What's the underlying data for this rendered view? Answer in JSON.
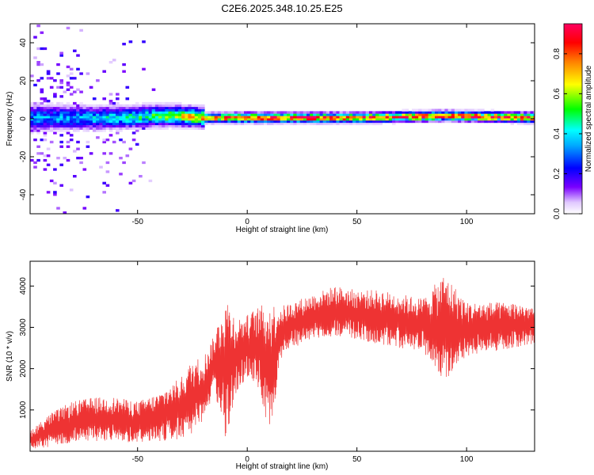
{
  "title": "C2E6.2025.348.10.25.E25",
  "chart_data": [
    {
      "type": "heatmap",
      "xlabel": "Height of straight line (km)",
      "ylabel": "Frequency (Hz)",
      "xlim": [
        -99,
        131
      ],
      "ylim": [
        -50,
        50
      ],
      "xticks": [
        -50,
        0,
        50,
        100
      ],
      "yticks": [
        -40,
        -20,
        0,
        20,
        40
      ],
      "grid": false,
      "colorbar": {
        "label": "Normalized spectral amplitude",
        "range": [
          0,
          0.95
        ],
        "ticks": [
          0.0,
          0.2,
          0.4,
          0.6,
          0.8
        ],
        "tick_labels": [
          "0.0",
          "0.2",
          "0.4",
          "0.6",
          "0.8"
        ],
        "colormap": [
          "#ffffff",
          "#7a00ff",
          "#0000ff",
          "#00ffff",
          "#00ff00",
          "#ffff00",
          "#ff8000",
          "#ff0000",
          "#ff0060"
        ]
      },
      "ridge": {
        "description_free": true,
        "center_hz": [
          {
            "x": -80,
            "y": 0
          },
          {
            "x": -60,
            "y": 0
          },
          {
            "x": -40,
            "y": 1
          },
          {
            "x": -30,
            "y": 1
          },
          {
            "x": -20,
            "y": 0
          },
          {
            "x": 0,
            "y": 0
          },
          {
            "x": 50,
            "y": 0
          },
          {
            "x": 90,
            "y": 1
          },
          {
            "x": 131,
            "y": 0
          }
        ],
        "peak_amplitude": [
          {
            "x": -80,
            "y": 0.35
          },
          {
            "x": -60,
            "y": 0.45
          },
          {
            "x": -40,
            "y": 0.55
          },
          {
            "x": -20,
            "y": 0.75
          },
          {
            "x": 0,
            "y": 0.9
          },
          {
            "x": 50,
            "y": 0.85
          },
          {
            "x": 100,
            "y": 0.9
          },
          {
            "x": 131,
            "y": 0.85
          }
        ]
      }
    },
    {
      "type": "line",
      "xlabel": "Height of straight line (km)",
      "ylabel": "SNR (10 * v/v)",
      "xlim": [
        -99,
        131
      ],
      "ylim": [
        0,
        4600
      ],
      "xticks": [
        -50,
        0,
        50,
        100
      ],
      "yticks": [
        1000,
        2000,
        3000,
        4000
      ],
      "grid": false,
      "color": "#ee3333",
      "envelope": [
        {
          "x": -99,
          "low": 50,
          "high": 500
        },
        {
          "x": -90,
          "low": 100,
          "high": 900
        },
        {
          "x": -80,
          "low": 200,
          "high": 1200
        },
        {
          "x": -70,
          "low": 250,
          "high": 1300
        },
        {
          "x": -60,
          "low": 250,
          "high": 1300
        },
        {
          "x": -50,
          "low": 200,
          "high": 1200
        },
        {
          "x": -40,
          "low": 250,
          "high": 1400
        },
        {
          "x": -30,
          "low": 300,
          "high": 1800
        },
        {
          "x": -25,
          "low": 400,
          "high": 2200
        },
        {
          "x": -20,
          "low": 600,
          "high": 2300
        },
        {
          "x": -15,
          "low": 1500,
          "high": 2800
        },
        {
          "x": -10,
          "low": 200,
          "high": 3800
        },
        {
          "x": -5,
          "low": 1400,
          "high": 3200
        },
        {
          "x": 0,
          "low": 1800,
          "high": 3300
        },
        {
          "x": 5,
          "low": 1500,
          "high": 3500
        },
        {
          "x": 10,
          "low": 300,
          "high": 3600
        },
        {
          "x": 15,
          "low": 2100,
          "high": 3500
        },
        {
          "x": 20,
          "low": 2500,
          "high": 3600
        },
        {
          "x": 30,
          "low": 2700,
          "high": 3800
        },
        {
          "x": 40,
          "low": 2800,
          "high": 4000
        },
        {
          "x": 50,
          "low": 2700,
          "high": 3900
        },
        {
          "x": 60,
          "low": 2600,
          "high": 3900
        },
        {
          "x": 70,
          "low": 2500,
          "high": 3800
        },
        {
          "x": 80,
          "low": 2400,
          "high": 3700
        },
        {
          "x": 90,
          "low": 1700,
          "high": 4300
        },
        {
          "x": 100,
          "low": 2300,
          "high": 3600
        },
        {
          "x": 110,
          "low": 2400,
          "high": 3600
        },
        {
          "x": 120,
          "low": 2500,
          "high": 3600
        },
        {
          "x": 131,
          "low": 2600,
          "high": 3500
        }
      ]
    }
  ]
}
